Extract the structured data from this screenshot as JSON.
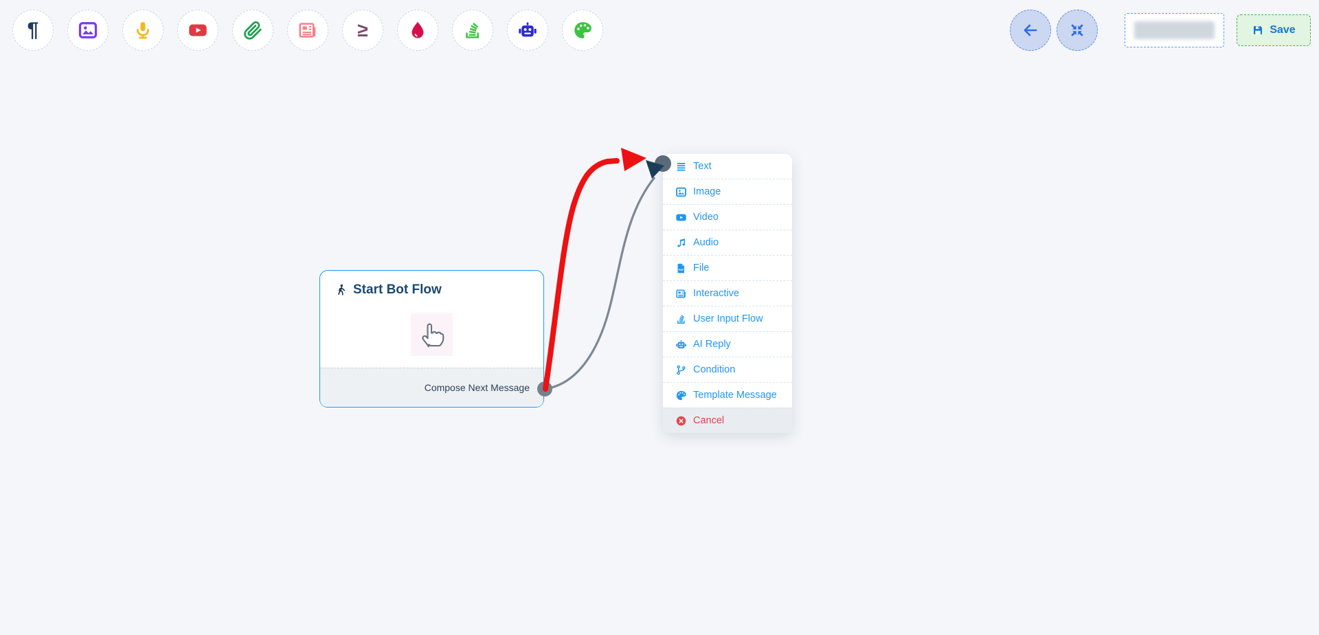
{
  "colors": {
    "canvas_bg": "#f4f6f9",
    "edge_red": "#ee1111",
    "edge_gray": "#7c8894",
    "connector_dot": "#75818e",
    "junction_dot": "#5c6b79",
    "arrowhead_navy": "#1c3d5a",
    "menu_item_blue": "#2196f3",
    "cancel_red": "#e4444a",
    "node_border_blue": "#2196f3",
    "title_navy": "#1a4971",
    "save_blue": "#1976d2"
  },
  "toolbar": {
    "items": [
      {
        "icon": "pilcrow-icon",
        "color": "#1f3a5f"
      },
      {
        "icon": "image-icon",
        "color": "#7c3aed"
      },
      {
        "icon": "microphone-icon",
        "color": "#f6b61e"
      },
      {
        "icon": "youtube-icon",
        "color": "#df3a44"
      },
      {
        "icon": "paperclip-icon",
        "color": "#1fa14e"
      },
      {
        "icon": "newspaper-icon",
        "color": "#fa7e86"
      },
      {
        "icon": "greater-equal-icon",
        "color": "#7b4a6d"
      },
      {
        "icon": "water-drop-icon",
        "color": "#d41049"
      },
      {
        "icon": "stack-icon",
        "color": "#3bc441"
      },
      {
        "icon": "robot-icon",
        "color": "#2a2ad7"
      },
      {
        "icon": "palette-icon",
        "color": "#3bc441"
      }
    ]
  },
  "header_actions": {
    "back_button": {
      "icon": "arrow-left-icon"
    },
    "fit_view_button": {
      "icon": "compress-icon"
    },
    "flow_name_input": {
      "value": "",
      "placeholder": ""
    },
    "save_button": {
      "label": "Save",
      "icon": "save-icon"
    }
  },
  "node": {
    "title": "Start Bot Flow",
    "title_icon": "walking-person-icon",
    "footer_label": "Compose Next Message",
    "cursor_icon": "hand-pointer-cursor-icon"
  },
  "context_menu": {
    "item_color": "#2196f3",
    "danger_color": "#e4444a",
    "items": [
      {
        "label": "Text",
        "icon": "text-lines-icon"
      },
      {
        "label": "Image",
        "icon": "image-icon"
      },
      {
        "label": "Video",
        "icon": "video-icon"
      },
      {
        "label": "Audio",
        "icon": "music-note-icon"
      },
      {
        "label": "File",
        "icon": "pdf-file-icon"
      },
      {
        "label": "Interactive",
        "icon": "newspaper-icon"
      },
      {
        "label": "User Input Flow",
        "icon": "stack-icon"
      },
      {
        "label": "AI Reply",
        "icon": "robot-icon"
      },
      {
        "label": "Condition",
        "icon": "branch-icon"
      },
      {
        "label": "Template Message",
        "icon": "palette-icon"
      },
      {
        "label": "Cancel",
        "icon": "cancel-icon",
        "danger": true
      }
    ]
  }
}
